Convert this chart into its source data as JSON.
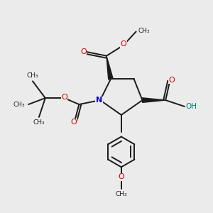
{
  "background_color": "#ebebeb",
  "bond_color": "#1a1a1a",
  "nitrogen_color": "#0000cc",
  "oxygen_color": "#cc0000",
  "oh_color": "#008080",
  "figsize": [
    3.0,
    3.0
  ],
  "dpi": 100,
  "xlim": [
    0,
    10
  ],
  "ylim": [
    0,
    10
  ]
}
